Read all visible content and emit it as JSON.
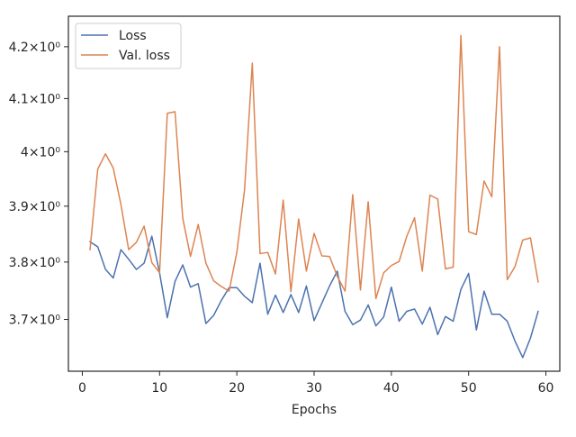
{
  "chart_data": {
    "type": "line",
    "title": "",
    "xlabel": "Epochs",
    "ylabel": "",
    "xlim": [
      -1.8,
      61.8
    ],
    "ylim": [
      3.612,
      4.26
    ],
    "yscale": "log",
    "x_ticks": [
      0,
      10,
      20,
      30,
      40,
      50,
      60
    ],
    "x_tick_labels": [
      "0",
      "10",
      "20",
      "30",
      "40",
      "50",
      "60"
    ],
    "y_ticks": [
      3.7,
      3.8,
      3.9,
      4.0,
      4.1,
      4.2
    ],
    "y_tick_labels": [
      "3.7×10⁰",
      "3.8×10⁰",
      "3.9×10⁰",
      "4×10⁰",
      "4.1×10⁰",
      "4.2×10⁰"
    ],
    "grid": false,
    "legend_position": "top-left",
    "x": [
      1,
      2,
      3,
      4,
      5,
      6,
      7,
      8,
      9,
      10,
      11,
      12,
      13,
      14,
      15,
      16,
      17,
      18,
      19,
      20,
      21,
      22,
      23,
      24,
      25,
      26,
      27,
      28,
      29,
      30,
      31,
      32,
      33,
      34,
      35,
      36,
      37,
      38,
      39,
      40,
      41,
      42,
      43,
      44,
      45,
      46,
      47,
      48,
      49,
      50,
      51,
      52,
      53,
      54,
      55,
      56,
      57,
      58,
      59
    ],
    "series": [
      {
        "name": "Loss",
        "color": "#4c72b0",
        "values": [
          3.836,
          3.827,
          3.787,
          3.772,
          3.822,
          3.805,
          3.787,
          3.798,
          3.846,
          3.781,
          3.703,
          3.766,
          3.795,
          3.756,
          3.762,
          3.693,
          3.707,
          3.733,
          3.755,
          3.755,
          3.74,
          3.729,
          3.798,
          3.709,
          3.742,
          3.712,
          3.743,
          3.712,
          3.758,
          3.698,
          3.728,
          3.758,
          3.784,
          3.714,
          3.691,
          3.699,
          3.725,
          3.689,
          3.704,
          3.756,
          3.697,
          3.714,
          3.718,
          3.692,
          3.721,
          3.674,
          3.705,
          3.697,
          3.752,
          3.78,
          3.682,
          3.749,
          3.709,
          3.709,
          3.697,
          3.663,
          3.635,
          3.668,
          3.714
        ]
      },
      {
        "name": "Val. loss",
        "color": "#dd8452",
        "values": [
          3.822,
          3.968,
          3.996,
          3.97,
          3.903,
          3.822,
          3.835,
          3.864,
          3.799,
          3.781,
          4.072,
          4.075,
          3.878,
          3.81,
          3.867,
          3.798,
          3.767,
          3.757,
          3.749,
          3.817,
          3.93,
          4.168,
          3.815,
          3.817,
          3.779,
          3.911,
          3.748,
          3.877,
          3.784,
          3.851,
          3.811,
          3.81,
          3.775,
          3.749,
          3.921,
          3.751,
          3.908,
          3.736,
          3.781,
          3.794,
          3.801,
          3.846,
          3.879,
          3.784,
          3.92,
          3.913,
          3.788,
          3.791,
          4.222,
          3.854,
          3.849,
          3.946,
          3.917,
          4.2,
          3.769,
          3.792,
          3.839,
          3.843,
          3.765
        ]
      }
    ]
  }
}
